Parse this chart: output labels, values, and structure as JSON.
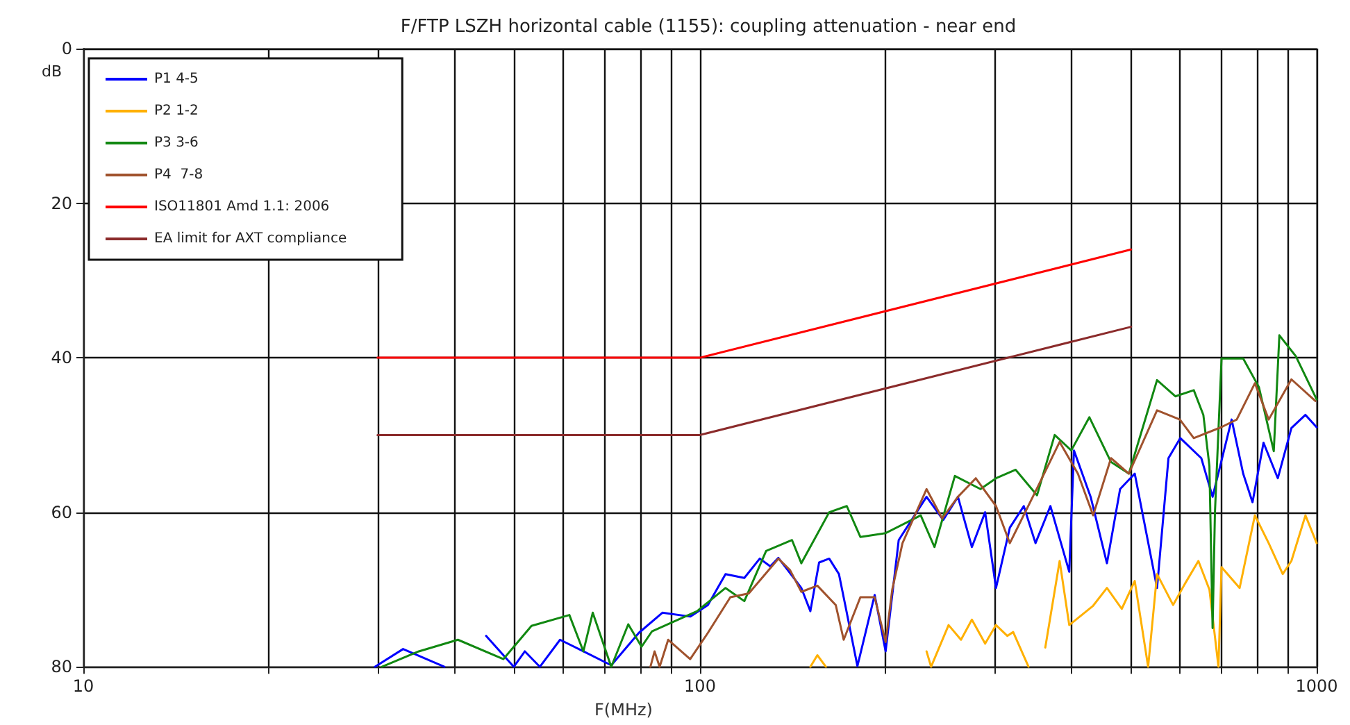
{
  "chart_data": {
    "type": "line",
    "title": "F/FTP LSZH horizontal cable (1155): coupling attenuation - near end",
    "xlabel": "F(MHz)",
    "ylabel": "dB",
    "log": "x",
    "grid": true,
    "legend": "top left",
    "marker": "none",
    "line_style": "solid",
    "xlim": [
      10,
      1000
    ],
    "xticks": [
      10,
      {
        "value": 20,
        "label": null
      },
      {
        "value": 30,
        "label": null
      },
      {
        "value": 40,
        "label": null
      },
      {
        "value": 50,
        "label": null
      },
      {
        "value": 60,
        "label": null
      },
      {
        "value": 70,
        "label": null
      },
      {
        "value": 80,
        "label": null
      },
      {
        "value": 90,
        "label": null
      },
      100,
      {
        "value": 200,
        "label": null
      },
      {
        "value": 300,
        "label": null
      },
      {
        "value": 400,
        "label": null
      },
      {
        "value": 500,
        "label": null
      },
      {
        "value": 600,
        "label": null
      },
      {
        "value": 700,
        "label": null
      },
      {
        "value": 800,
        "label": null
      },
      {
        "value": 900,
        "label": null
      },
      1000
    ],
    "ylim": [
      80,
      0
    ],
    "yticks": [
      0,
      20,
      40,
      60,
      80
    ],
    "series": [
      {
        "name": "P1 4-5",
        "color": "#0000ff",
        "x": [
          29.7,
          33,
          38.5,
          41,
          45,
          49.9,
          52,
          55,
          59.3,
          64.7,
          71.8,
          79.6,
          86.9,
          96.4,
          103,
          110,
          118,
          125,
          130,
          134,
          146,
          151,
          156,
          162,
          168,
          172,
          180,
          192,
          200,
          210,
          233,
          248,
          262,
          276,
          290,
          302,
          318,
          335,
          350,
          370,
          397,
          404,
          430,
          457,
          480,
          507,
          551,
          575,
          601,
          650,
          678,
          728,
          760,
          787,
          820,
          865,
          910,
          959,
          1000
        ],
        "values": [
          80,
          77.7,
          80,
          null,
          76,
          80,
          78,
          80,
          76.5,
          78,
          79.8,
          75.6,
          73,
          73.5,
          72,
          68,
          68.5,
          66,
          67,
          65.9,
          69.8,
          72.8,
          66.5,
          66,
          68,
          72,
          79.9,
          70.7,
          78,
          63.6,
          58,
          61,
          58,
          64.5,
          60,
          69.8,
          62,
          59.2,
          64,
          59.2,
          67.7,
          52,
          58,
          66.6,
          57,
          55,
          69.8,
          53,
          50.4,
          53,
          58,
          48,
          55,
          58.7,
          51,
          55.6,
          49.1,
          47.4,
          49
        ]
      },
      {
        "name": "P2 1-2",
        "color": "#ffb000",
        "x": [
          151,
          155,
          160,
          161,
          233,
          237,
          253,
          265,
          276,
          290,
          302,
          315,
          322,
          341,
          350,
          363,
          383,
          397,
          434,
          457,
          483,
          507,
          533,
          551,
          585,
          611,
          643,
          670,
          693,
          701,
          750,
          794,
          836,
          881,
          910,
          959,
          1000
        ],
        "values": [
          80,
          78.5,
          80,
          null,
          78,
          80,
          74.6,
          76.5,
          73.9,
          77,
          74.6,
          76,
          75.5,
          80,
          null,
          77.5,
          66.3,
          74.6,
          72.1,
          69.8,
          72.5,
          68.9,
          80,
          68,
          72,
          69.3,
          66.3,
          70,
          80,
          67.1,
          69.8,
          60.4,
          64,
          68,
          66.3,
          60.4,
          64
        ]
      },
      {
        "name": "P3 3-6",
        "color": "#118811",
        "x": [
          30.5,
          35,
          40.5,
          48,
          53.3,
          61.4,
          64.7,
          67,
          71.8,
          76.5,
          80.4,
          83.6,
          98.9,
          110,
          118,
          128,
          141,
          146,
          162,
          173,
          182,
          200,
          228,
          240,
          259,
          285,
          302,
          325,
          352,
          376,
          400,
          428,
          464,
          496,
          551,
          590,
          632,
          655,
          670,
          678,
          684,
          701,
          760,
          806,
          852,
          870,
          925,
          1000
        ],
        "values": [
          80,
          78,
          76.5,
          79,
          74.7,
          73.3,
          78,
          73,
          80,
          74.5,
          77.4,
          75.4,
          72.8,
          69.8,
          71.5,
          65,
          63.6,
          66.6,
          60,
          59.2,
          63.2,
          62.7,
          60.4,
          64.5,
          55.3,
          57,
          55.6,
          54.5,
          57.8,
          50,
          52,
          47.7,
          53.5,
          55,
          42.9,
          45,
          44.2,
          47.4,
          54,
          75,
          60,
          40.1,
          40.1,
          43.8,
          52.1,
          37.1,
          39.8,
          45.4
        ]
      },
      {
        "name": "P4  7-8",
        "color": "#a0522d",
        "x": [
          83.1,
          84.4,
          86,
          88.8,
          96.4,
          103,
          112,
          120,
          134,
          140,
          146,
          155,
          166,
          171,
          182,
          192,
          200,
          205,
          213,
          233,
          247,
          262,
          280,
          302,
          318,
          352,
          383,
          410,
          434,
          464,
          496,
          551,
          600,
          632,
          700,
          742,
          794,
          836,
          910,
          995
        ],
        "values": [
          80,
          78,
          80,
          76.5,
          79,
          75.6,
          71,
          70.5,
          66,
          67.5,
          70.3,
          69.5,
          72,
          76.5,
          71,
          71,
          76.8,
          70,
          64,
          57,
          60.8,
          58,
          55.6,
          59.2,
          64,
          56.9,
          50.9,
          55,
          60.4,
          53,
          55,
          46.8,
          48,
          50.4,
          49,
          48,
          43.3,
          48,
          42.8,
          45.6
        ]
      },
      {
        "name": "ISO11801 Amd 1.1: 2006",
        "color": "#ff0000",
        "x": [
          30,
          100,
          500
        ],
        "values": [
          40,
          40,
          26
        ]
      },
      {
        "name": "EA limit for AXT compliance",
        "color": "#8b2b2b",
        "x": [
          30,
          100,
          500
        ],
        "values": [
          50,
          50,
          36
        ]
      }
    ]
  }
}
